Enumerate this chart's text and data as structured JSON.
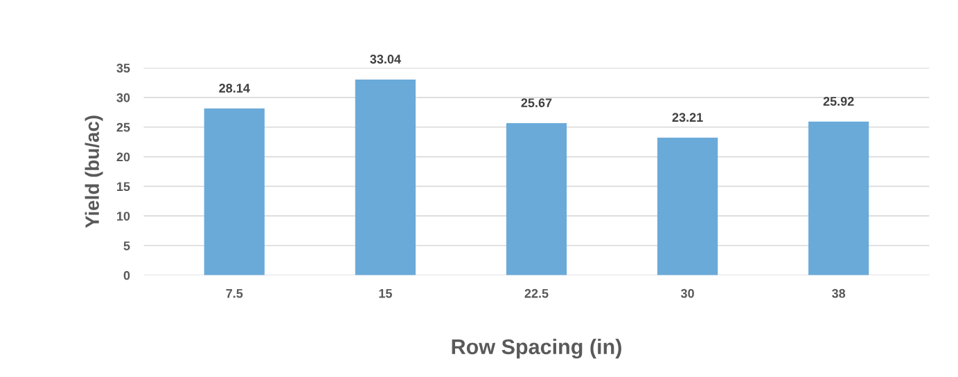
{
  "chart_data": {
    "type": "bar",
    "xlabel": "Row Spacing (in)",
    "ylabel": "Yield (bu/ac)",
    "categories": [
      "7.5",
      "15",
      "22.5",
      "30",
      "38"
    ],
    "values": [
      28.14,
      33.04,
      25.67,
      23.21,
      25.92
    ],
    "color": "#6aaad9",
    "ylim": [
      0,
      35
    ],
    "yticks": [
      0,
      5,
      10,
      15,
      20,
      25,
      30,
      35
    ],
    "grid": "y",
    "data_labels": true
  }
}
